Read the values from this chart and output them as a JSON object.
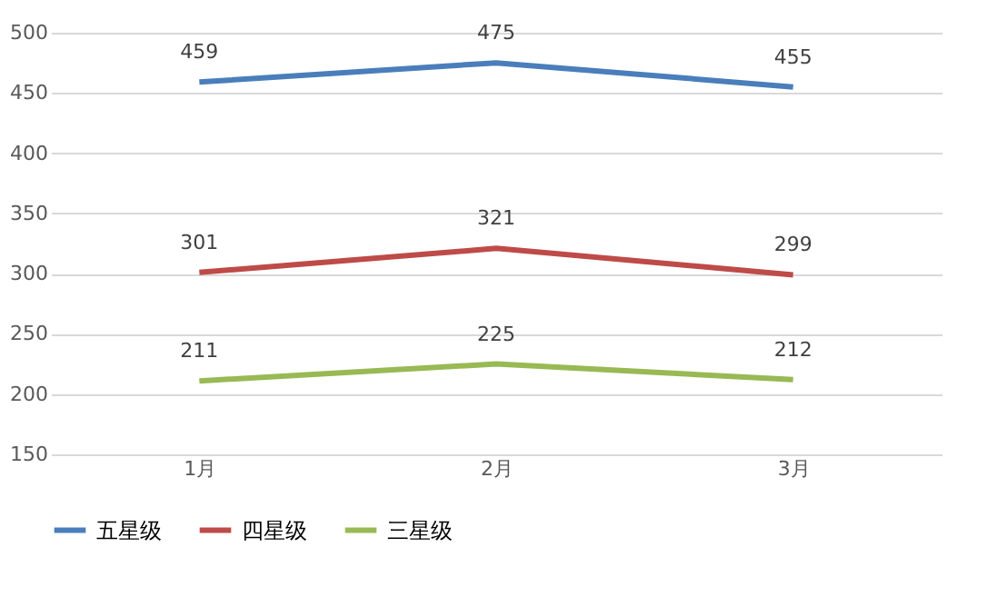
{
  "chart_data": {
    "type": "line",
    "categories": [
      "1月",
      "2月",
      "3月"
    ],
    "series": [
      {
        "name": "五星级",
        "color": "#4a7ebb",
        "values": [
          459,
          475,
          455
        ]
      },
      {
        "name": "四星级",
        "color": "#be4b48",
        "values": [
          301,
          321,
          299
        ]
      },
      {
        "name": "三星级",
        "color": "#98b954",
        "values": [
          211,
          225,
          212
        ]
      }
    ],
    "ylim": [
      150,
      500
    ],
    "yticks": [
      150,
      200,
      250,
      300,
      350,
      400,
      450,
      500
    ],
    "grid": "y",
    "legend": "bottom",
    "data_labels": true,
    "line_style": "solid"
  }
}
